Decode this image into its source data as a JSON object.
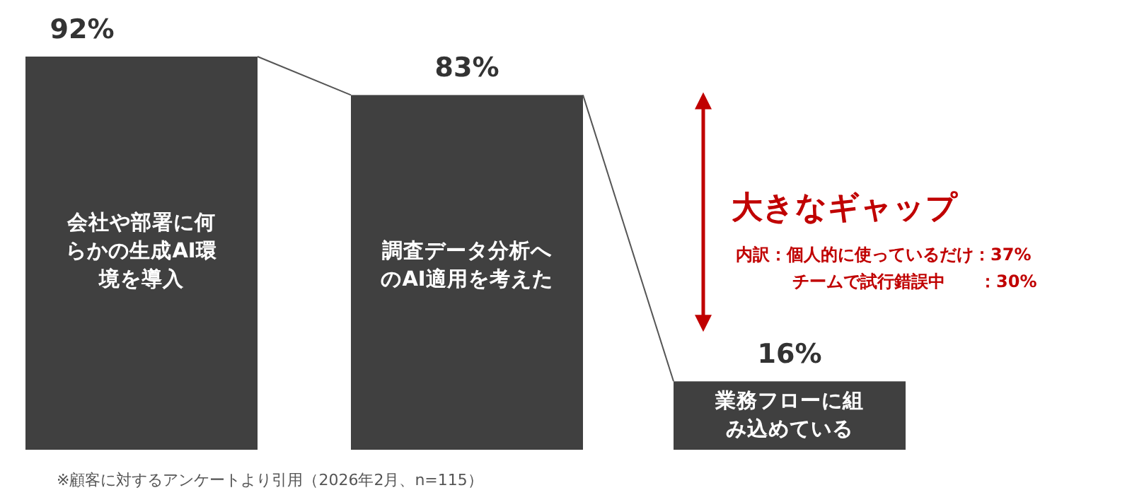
{
  "chart_data": {
    "type": "bar",
    "categories": [
      "会社や部署に何らかの生成AI環境を導入",
      "調査データ分析へのAI適用を考えた",
      "業務フローに組み込めている"
    ],
    "values": [
      92,
      83,
      16
    ],
    "value_labels": [
      "92%",
      "83%",
      "16%"
    ],
    "color": "#404040",
    "annotations": [
      "大きなギャップ",
      "内訳：個人的に使っているだけ：37%",
      "チームで試行錯誤中　　：30%",
      "※顧客に対するアンケートより引用（2026年2月、n=115）"
    ]
  }
}
